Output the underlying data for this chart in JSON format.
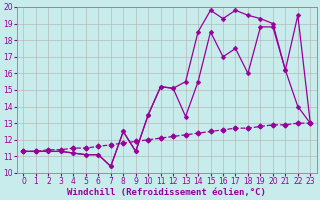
{
  "background_color": "#c8ecec",
  "grid_color": "#b0b0b0",
  "line_color": "#990099",
  "markersize": 2.5,
  "linewidth": 0.9,
  "xlabel": "Windchill (Refroidissement éolien,°C)",
  "xlabel_fontsize": 6.5,
  "tick_fontsize": 5.5,
  "ylim": [
    10,
    20
  ],
  "xlim": [
    -0.5,
    23.5
  ],
  "yticks": [
    10,
    11,
    12,
    13,
    14,
    15,
    16,
    17,
    18,
    19,
    20
  ],
  "xticks": [
    0,
    1,
    2,
    3,
    4,
    5,
    6,
    7,
    8,
    9,
    10,
    11,
    12,
    13,
    14,
    15,
    16,
    17,
    18,
    19,
    20,
    21,
    22,
    23
  ],
  "line1_x": [
    0,
    1,
    2,
    3,
    4,
    5,
    6,
    7,
    8,
    9,
    10,
    11,
    12,
    13,
    14,
    15,
    16,
    17,
    18,
    19,
    20,
    21,
    22,
    23
  ],
  "line1_y": [
    11.3,
    11.3,
    11.4,
    11.4,
    11.5,
    11.5,
    11.6,
    11.7,
    11.8,
    11.9,
    12.0,
    12.1,
    12.2,
    12.3,
    12.4,
    12.5,
    12.6,
    12.7,
    12.7,
    12.8,
    12.9,
    12.9,
    13.0,
    13.0
  ],
  "line2_x": [
    0,
    1,
    2,
    3,
    4,
    5,
    6,
    7,
    8,
    9,
    10,
    11,
    12,
    13,
    14,
    15,
    16,
    17,
    18,
    19,
    20,
    21,
    22,
    23
  ],
  "line2_y": [
    11.3,
    11.3,
    11.3,
    11.3,
    11.2,
    11.1,
    11.1,
    10.4,
    12.5,
    11.3,
    13.5,
    15.2,
    15.1,
    13.4,
    15.5,
    18.5,
    17.0,
    17.5,
    16.0,
    18.8,
    18.8,
    16.2,
    14.0,
    13.0
  ],
  "line3_x": [
    0,
    1,
    2,
    3,
    4,
    5,
    6,
    7,
    8,
    9,
    10,
    11,
    12,
    13,
    14,
    15,
    16,
    17,
    18,
    19,
    20,
    21,
    22,
    23
  ],
  "line3_y": [
    11.3,
    11.3,
    11.3,
    11.3,
    11.2,
    11.1,
    11.1,
    10.4,
    12.5,
    11.3,
    13.5,
    15.2,
    15.1,
    15.5,
    18.5,
    19.8,
    19.3,
    19.8,
    19.5,
    19.3,
    19.0,
    16.2,
    19.5,
    13.0
  ]
}
